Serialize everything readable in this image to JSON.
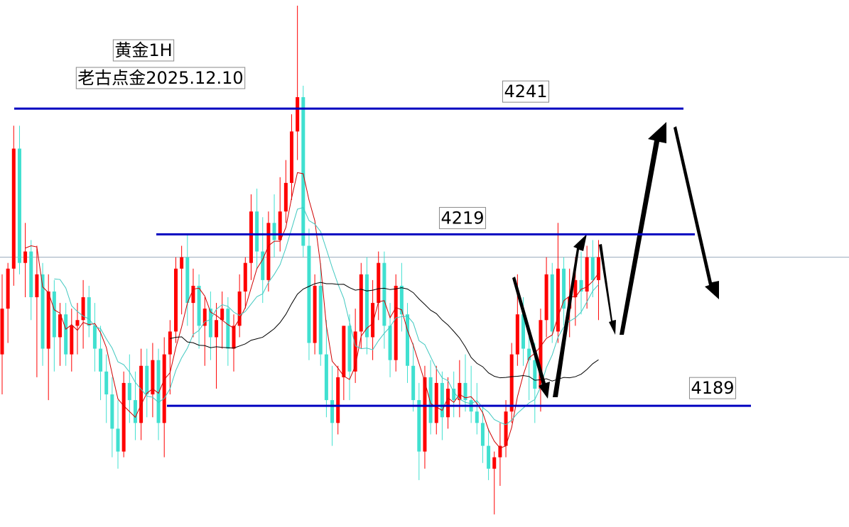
{
  "chart_data": {
    "type": "candlestick",
    "title": "黄金1H",
    "subtitle": "老古点金2025.12.10",
    "ylim": [
      4167.8,
      4260
    ],
    "up_color": "#ff0000",
    "down_color": "#40e0d0",
    "level_color": "#0000c0",
    "levels": [
      4241,
      4219,
      4189
    ],
    "ohlc": [
      [
        4198,
        4212,
        4191,
        4206
      ],
      [
        4206,
        4214,
        4200,
        4213
      ],
      [
        4213,
        4238,
        4210,
        4234
      ],
      [
        4234,
        4238,
        4212,
        4214
      ],
      [
        4214,
        4221,
        4208,
        4216
      ],
      [
        4216,
        4218,
        4204,
        4208
      ],
      [
        4208,
        4217,
        4194,
        4212
      ],
      [
        4212,
        4214,
        4196,
        4199
      ],
      [
        4199,
        4212,
        4190,
        4209
      ],
      [
        4209,
        4211,
        4195,
        4201
      ],
      [
        4201,
        4207,
        4196,
        4205
      ],
      [
        4205,
        4207,
        4196,
        4198
      ],
      [
        4198,
        4206,
        4195,
        4203
      ],
      [
        4203,
        4207,
        4198,
        4204
      ],
      [
        4204,
        4211,
        4199,
        4208
      ],
      [
        4208,
        4210,
        4201,
        4203
      ],
      [
        4203,
        4207,
        4195,
        4199
      ],
      [
        4199,
        4203,
        4190,
        4195
      ],
      [
        4195,
        4198,
        4186,
        4191
      ],
      [
        4191,
        4194,
        4180,
        4185
      ],
      [
        4185,
        4190,
        4178,
        4181
      ],
      [
        4181,
        4195,
        4180,
        4193
      ],
      [
        4193,
        4198,
        4186,
        4190
      ],
      [
        4190,
        4195,
        4183,
        4186
      ],
      [
        4186,
        4199,
        4183,
        4196
      ],
      [
        4196,
        4199,
        4187,
        4191
      ],
      [
        4191,
        4200,
        4187,
        4197
      ],
      [
        4197,
        4199,
        4183,
        4186
      ],
      [
        4186,
        4201,
        4180,
        4198
      ],
      [
        4198,
        4204,
        4191,
        4202
      ],
      [
        4202,
        4215,
        4200,
        4213
      ],
      [
        4213,
        4217,
        4205,
        4215
      ],
      [
        4215,
        4219,
        4203,
        4207
      ],
      [
        4207,
        4213,
        4201,
        4210
      ],
      [
        4210,
        4212,
        4199,
        4203
      ],
      [
        4203,
        4208,
        4196,
        4206
      ],
      [
        4206,
        4209,
        4197,
        4201
      ],
      [
        4201,
        4207,
        4192,
        4204
      ],
      [
        4204,
        4209,
        4199,
        4206
      ],
      [
        4206,
        4208,
        4196,
        4199
      ],
      [
        4199,
        4205,
        4195,
        4203
      ],
      [
        4203,
        4212,
        4201,
        4209
      ],
      [
        4209,
        4215,
        4206,
        4214
      ],
      [
        4214,
        4226,
        4211,
        4223
      ],
      [
        4223,
        4227,
        4213,
        4216
      ],
      [
        4216,
        4222,
        4207,
        4211
      ],
      [
        4211,
        4223,
        4209,
        4221
      ],
      [
        4221,
        4226,
        4215,
        4218
      ],
      [
        4218,
        4229,
        4216,
        4223
      ],
      [
        4223,
        4232,
        4221,
        4228
      ],
      [
        4228,
        4240,
        4225,
        4237
      ],
      [
        4237,
        4259,
        4232,
        4243
      ],
      [
        4243,
        4245,
        4215,
        4217
      ],
      [
        4217,
        4220,
        4197,
        4200
      ],
      [
        4200,
        4212,
        4198,
        4210
      ],
      [
        4210,
        4214,
        4196,
        4198
      ],
      [
        4198,
        4204,
        4187,
        4190
      ],
      [
        4190,
        4196,
        4182,
        4186
      ],
      [
        4186,
        4196,
        4184,
        4194
      ],
      [
        4194,
        4203,
        4190,
        4203
      ],
      [
        4203,
        4205,
        4190,
        4195
      ],
      [
        4195,
        4206,
        4193,
        4202
      ],
      [
        4202,
        4214,
        4199,
        4212
      ],
      [
        4212,
        4215,
        4198,
        4201
      ],
      [
        4201,
        4211,
        4197,
        4207
      ],
      [
        4207,
        4216,
        4204,
        4214
      ],
      [
        4214,
        4216,
        4199,
        4203
      ],
      [
        4203,
        4207,
        4194,
        4197
      ],
      [
        4197,
        4212,
        4195,
        4210
      ],
      [
        4210,
        4214,
        4202,
        4205
      ],
      [
        4205,
        4207,
        4193,
        4196
      ],
      [
        4196,
        4200,
        4188,
        4190
      ],
      [
        4190,
        4193,
        4176,
        4181
      ],
      [
        4181,
        4196,
        4178,
        4194
      ],
      [
        4194,
        4197,
        4184,
        4186
      ],
      [
        4186,
        4196,
        4184,
        4193
      ],
      [
        4193,
        4195,
        4183,
        4187
      ],
      [
        4187,
        4194,
        4185,
        4192
      ],
      [
        4192,
        4195,
        4187,
        4190
      ],
      [
        4190,
        4197,
        4187,
        4193
      ],
      [
        4193,
        4198,
        4188,
        4190
      ],
      [
        4190,
        4196,
        4186,
        4188
      ],
      [
        4188,
        4193,
        4184,
        4186
      ],
      [
        4186,
        4189,
        4179,
        4182
      ],
      [
        4182,
        4185,
        4176,
        4178
      ],
      [
        4178,
        4181,
        4170,
        4180
      ],
      [
        4180,
        4186,
        4175,
        4182
      ],
      [
        4182,
        4190,
        4180,
        4188
      ],
      [
        4188,
        4200,
        4186,
        4198
      ],
      [
        4198,
        4212,
        4196,
        4205
      ],
      [
        4205,
        4208,
        4196,
        4199
      ],
      [
        4199,
        4203,
        4190,
        4197
      ],
      [
        4197,
        4200,
        4186,
        4192
      ],
      [
        4192,
        4206,
        4188,
        4204
      ],
      [
        4204,
        4215,
        4201,
        4212
      ],
      [
        4212,
        4214,
        4200,
        4202
      ],
      [
        4202,
        4221,
        4200,
        4213
      ],
      [
        4213,
        4215,
        4203,
        4206
      ],
      [
        4206,
        4213,
        4201,
        4208
      ],
      [
        4208,
        4215,
        4203,
        4211
      ],
      [
        4211,
        4216,
        4205,
        4209
      ],
      [
        4209,
        4217,
        4206,
        4215
      ],
      [
        4215,
        4218,
        4208,
        4211
      ],
      [
        4211,
        4218,
        4204,
        4215
      ]
    ]
  }
}
